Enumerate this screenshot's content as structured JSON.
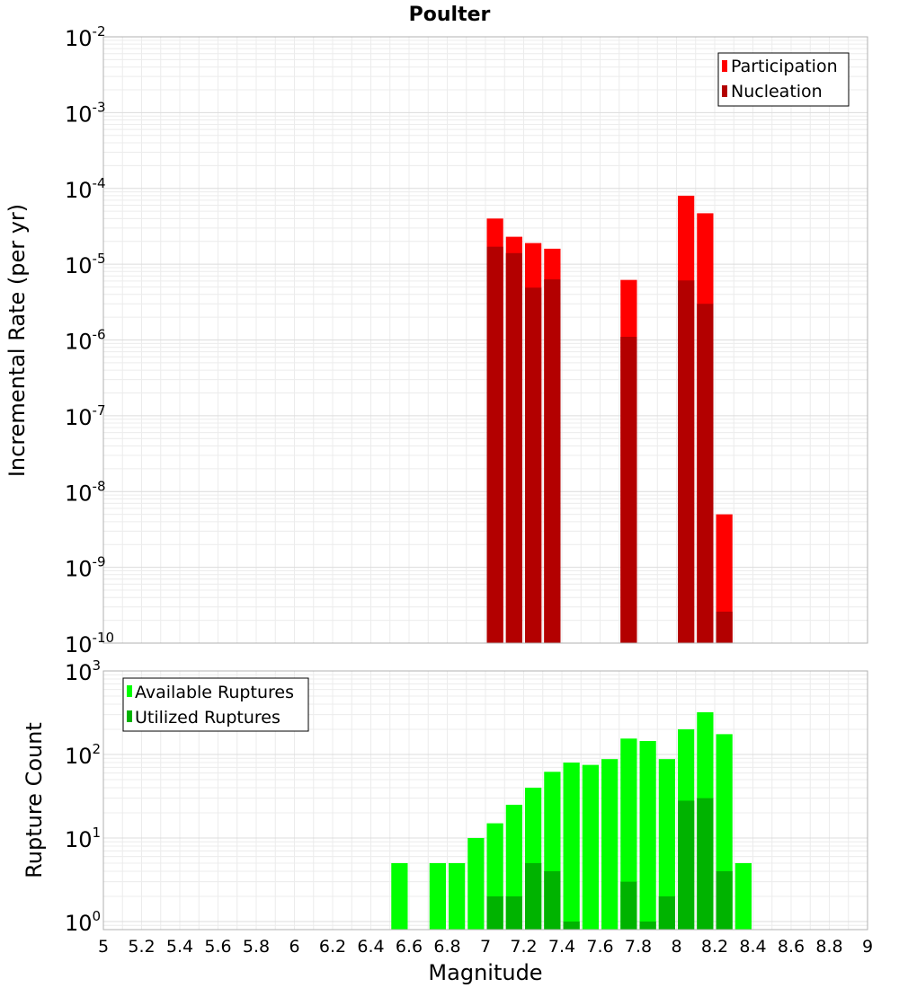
{
  "chart_data": [
    {
      "type": "bar",
      "title": "Poulter",
      "xlabel": "",
      "ylabel": "Incremental Rate (per yr)",
      "yscale": "log",
      "ylim": [
        1e-10,
        0.01
      ],
      "xlim": [
        5,
        9
      ],
      "bin_width": 0.1,
      "x": [
        7.05,
        7.15,
        7.25,
        7.35,
        7.75,
        8.05,
        8.15,
        8.25
      ],
      "series": [
        {
          "name": "Participation",
          "color": "#ff0000",
          "values": [
            4e-05,
            2.3e-05,
            1.9e-05,
            1.6e-05,
            6.2e-06,
            8e-05,
            4.7e-05,
            5e-09
          ]
        },
        {
          "name": "Nucleation",
          "color": "#b30000",
          "values": [
            1.7e-05,
            1.4e-05,
            4.9e-06,
            6.3e-06,
            1.1e-06,
            6.1e-06,
            3e-06,
            2.6e-10
          ]
        }
      ],
      "legend": [
        "Participation",
        "Nucleation"
      ],
      "legend_position": "top-right",
      "ytick_labels": [
        {
          "base": "10",
          "exp": "-10",
          "value": 1e-10
        },
        {
          "base": "10",
          "exp": "-9",
          "value": 1e-09
        },
        {
          "base": "10",
          "exp": "-8",
          "value": 1e-08
        },
        {
          "base": "10",
          "exp": "-7",
          "value": 1e-07
        },
        {
          "base": "10",
          "exp": "-6",
          "value": 1e-06
        },
        {
          "base": "10",
          "exp": "-5",
          "value": 1e-05
        },
        {
          "base": "10",
          "exp": "-4",
          "value": 0.0001
        },
        {
          "base": "10",
          "exp": "-3",
          "value": 0.001
        },
        {
          "base": "10",
          "exp": "-2",
          "value": 0.01
        }
      ]
    },
    {
      "type": "bar",
      "title": "",
      "xlabel": "Magnitude",
      "ylabel": "Rupture Count",
      "yscale": "log",
      "ylim": [
        0.8,
        1000
      ],
      "xlim": [
        5,
        9
      ],
      "bin_width": 0.1,
      "x": [
        6.55,
        6.75,
        6.85,
        6.95,
        7.05,
        7.15,
        7.25,
        7.35,
        7.45,
        7.55,
        7.65,
        7.75,
        7.85,
        7.95,
        8.05,
        8.15,
        8.25,
        8.35
      ],
      "series": [
        {
          "name": "Available Ruptures",
          "color": "#00ff00",
          "values": [
            5,
            5,
            5,
            10,
            15,
            25,
            40,
            62,
            80,
            75,
            88,
            155,
            145,
            88,
            200,
            320,
            175,
            5
          ]
        },
        {
          "name": "Utilized Ruptures",
          "color": "#00b300",
          "values": [
            0,
            0,
            0,
            0,
            2,
            2,
            5,
            4,
            1,
            0,
            0,
            3,
            1,
            2,
            28,
            30,
            4,
            0
          ]
        }
      ],
      "legend": [
        "Available Ruptures",
        "Utilized Ruptures"
      ],
      "legend_position": "top-left",
      "ytick_labels": [
        {
          "base": "10",
          "exp": "0",
          "value": 1
        },
        {
          "base": "10",
          "exp": "1",
          "value": 10
        },
        {
          "base": "10",
          "exp": "2",
          "value": 100
        },
        {
          "base": "10",
          "exp": "3",
          "value": 1000
        }
      ],
      "xtick_labels": [
        "5",
        "5.2",
        "5.4",
        "5.6",
        "5.8",
        "6",
        "6.2",
        "6.4",
        "6.6",
        "6.8",
        "7",
        "7.2",
        "7.4",
        "7.6",
        "7.8",
        "8",
        "8.2",
        "8.4",
        "8.6",
        "8.8",
        "9"
      ]
    }
  ]
}
